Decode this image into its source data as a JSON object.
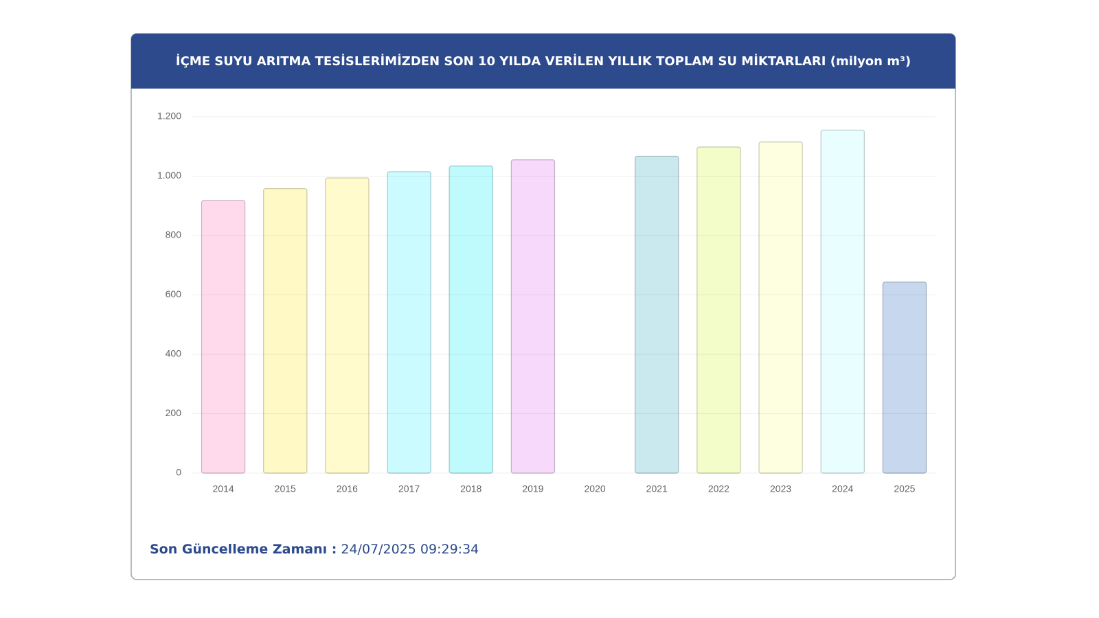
{
  "chart_data": {
    "type": "bar",
    "title": "İÇME SUYU ARITMA TESİSLERİMİZDEN SON 10 YILDA VERİLEN YILLIK TOPLAM SU MİKTARLARI (milyon m³)",
    "categories": [
      "2014",
      "2015",
      "2016",
      "2017",
      "2018",
      "2019",
      "2020",
      "2021",
      "2022",
      "2023",
      "2024",
      "2025"
    ],
    "values": [
      918,
      958,
      994,
      1015,
      1034,
      1055,
      null,
      1067,
      1098,
      1115,
      1155,
      643
    ],
    "colors": [
      "#ffd9ec",
      "#fff9c6",
      "#fffbcc",
      "#ccfbff",
      "#bffbfd",
      "#f7d9fc",
      null,
      "#c9e9ef",
      "#f3fdca",
      "#fefee0",
      "#e8feff",
      "#c7d7ee"
    ],
    "ylim": [
      0,
      1200
    ],
    "yticks": [
      0,
      200,
      400,
      600,
      800,
      {
        "value": 1000,
        "label": "1.000"
      },
      {
        "value": 1200,
        "label": "1.200"
      }
    ],
    "grid": true
  },
  "footer": {
    "label": "Son Güncelleme Zamanı :",
    "value": "24/07/2025 09:29:34"
  }
}
